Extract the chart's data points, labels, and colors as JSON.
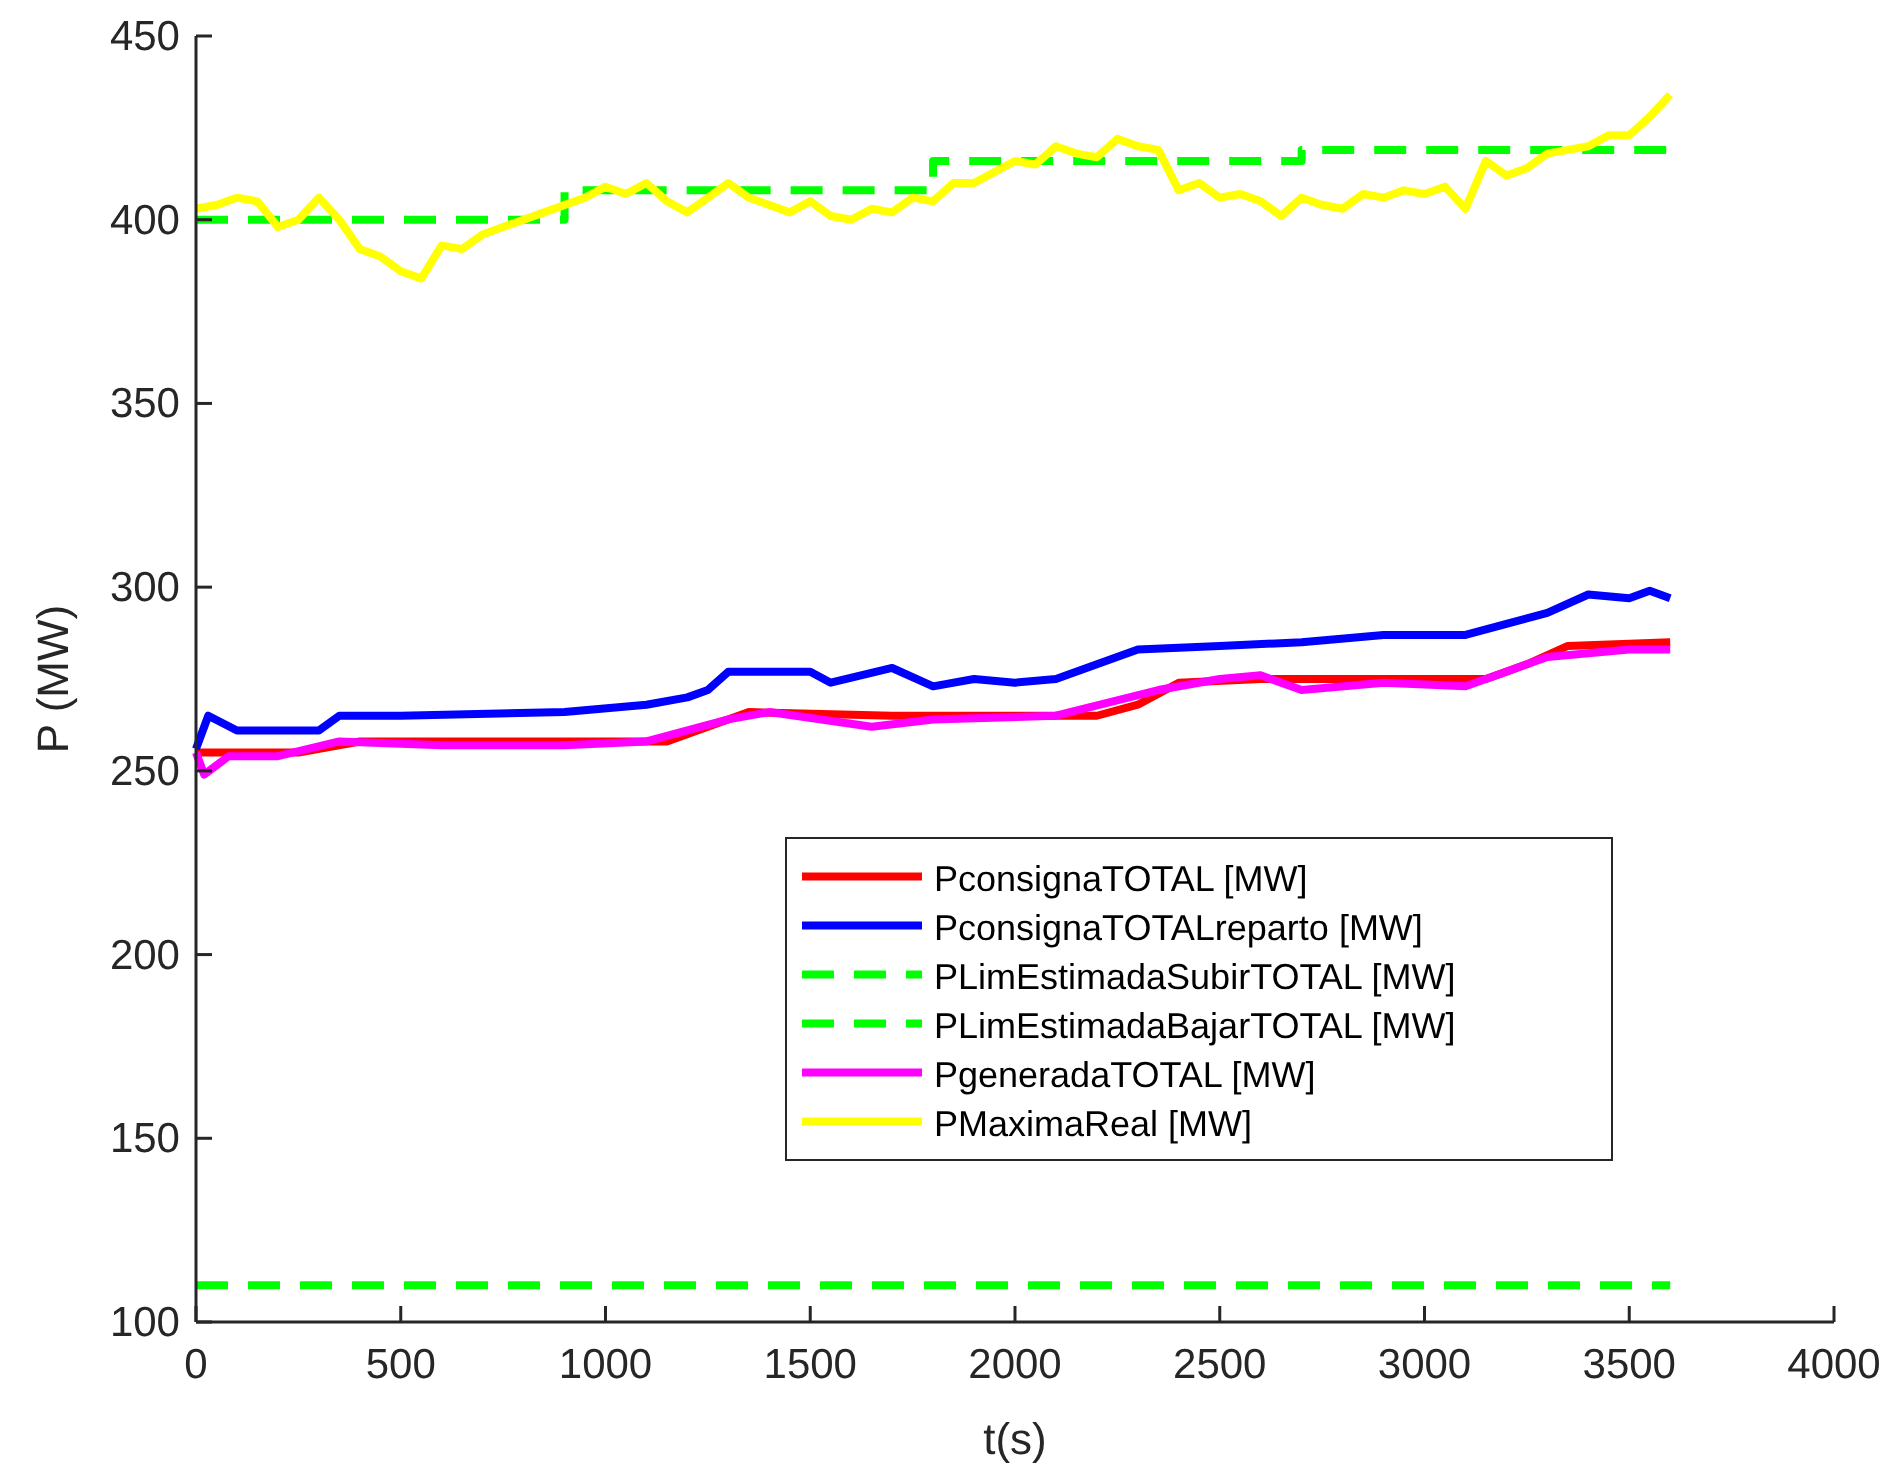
{
  "chart_data": {
    "type": "line",
    "xlabel": "t(s)",
    "ylabel": "P (MW)",
    "xlim": [
      0,
      4000
    ],
    "ylim": [
      100,
      450
    ],
    "xticks": [
      0,
      500,
      1000,
      1500,
      2000,
      2500,
      3000,
      3500,
      4000
    ],
    "yticks": [
      100,
      150,
      200,
      250,
      300,
      350,
      400,
      450
    ],
    "grid": false,
    "legend": "bottom right",
    "series": [
      {
        "name": "PconsignaTOTAL [MW]",
        "color": "#ff0000",
        "line_style": "solid",
        "x": [
          0,
          250,
          400,
          1150,
          1250,
          1350,
          1700,
          2200,
          2300,
          2400,
          2600,
          3150,
          3250,
          3350,
          3600
        ],
        "values": [
          255,
          255,
          258,
          258,
          262,
          266,
          265,
          265,
          268,
          274,
          275,
          275,
          279,
          284,
          285
        ]
      },
      {
        "name": "PconsignaTOTALreparto [MW]",
        "color": "#0000ff",
        "line_style": "solid",
        "x": [
          0,
          30,
          100,
          300,
          350,
          500,
          900,
          1100,
          1200,
          1250,
          1300,
          1500,
          1550,
          1700,
          1800,
          1900,
          2000,
          2100,
          2300,
          2500,
          2700,
          2900,
          3100,
          3200,
          3300,
          3400,
          3500,
          3550,
          3600
        ],
        "values": [
          256,
          265,
          261,
          261,
          265,
          265,
          266,
          268,
          270,
          272,
          277,
          277,
          274,
          278,
          273,
          275,
          274,
          275,
          283,
          284,
          285,
          287,
          287,
          290,
          293,
          298,
          297,
          299,
          297
        ]
      },
      {
        "name": "PLimEstimadaSubirTOTAL [MW]",
        "type": "step",
        "color": "#00ff00",
        "line_style": "dashed",
        "x": [
          0,
          900,
          1800,
          2700,
          3600
        ],
        "values": [
          400,
          408,
          416,
          419,
          419
        ]
      },
      {
        "name": "PLimEstimadaBajarTOTAL [MW]",
        "color": "#00ff00",
        "line_style": "dashed",
        "x": [
          0,
          3600
        ],
        "values": [
          110,
          110
        ]
      },
      {
        "name": "PgeneradaTOTAL [MW]",
        "color": "#ff00ff",
        "line_style": "solid",
        "x": [
          0,
          20,
          80,
          200,
          350,
          600,
          900,
          1100,
          1300,
          1400,
          1650,
          1800,
          2100,
          2350,
          2500,
          2600,
          2700,
          2900,
          3100,
          3200,
          3300,
          3500,
          3600
        ],
        "values": [
          255,
          249,
          254,
          254,
          258,
          257,
          257,
          258,
          264,
          266,
          262,
          264,
          265,
          272,
          275,
          276,
          272,
          274,
          273,
          277,
          281,
          283,
          283
        ]
      },
      {
        "name": "PMaximaReal [MW]",
        "color": "#ffff00",
        "line_style": "solid",
        "x": [
          0,
          50,
          100,
          150,
          200,
          250,
          300,
          350,
          400,
          450,
          500,
          550,
          600,
          650,
          700,
          750,
          800,
          850,
          900,
          950,
          1000,
          1050,
          1100,
          1150,
          1200,
          1250,
          1300,
          1350,
          1400,
          1450,
          1500,
          1550,
          1600,
          1650,
          1700,
          1750,
          1800,
          1850,
          1900,
          1950,
          2000,
          2050,
          2100,
          2150,
          2200,
          2250,
          2300,
          2350,
          2400,
          2450,
          2500,
          2550,
          2600,
          2650,
          2700,
          2750,
          2800,
          2850,
          2900,
          2950,
          3000,
          3050,
          3100,
          3150,
          3200,
          3250,
          3300,
          3350,
          3400,
          3450,
          3500,
          3550,
          3600
        ],
        "values": [
          403,
          404,
          406,
          405,
          398,
          400,
          406,
          400,
          392,
          390,
          386,
          384,
          393,
          392,
          396,
          398,
          400,
          402,
          404,
          406,
          409,
          407,
          410,
          405,
          402,
          406,
          410,
          406,
          404,
          402,
          405,
          401,
          400,
          403,
          402,
          406,
          405,
          410,
          410,
          413,
          416,
          415,
          420,
          418,
          417,
          422,
          420,
          419,
          408,
          410,
          406,
          407,
          405,
          401,
          406,
          404,
          403,
          407,
          406,
          408,
          407,
          409,
          403,
          416,
          412,
          414,
          418,
          419,
          420,
          423,
          423,
          428,
          434
        ]
      }
    ]
  }
}
